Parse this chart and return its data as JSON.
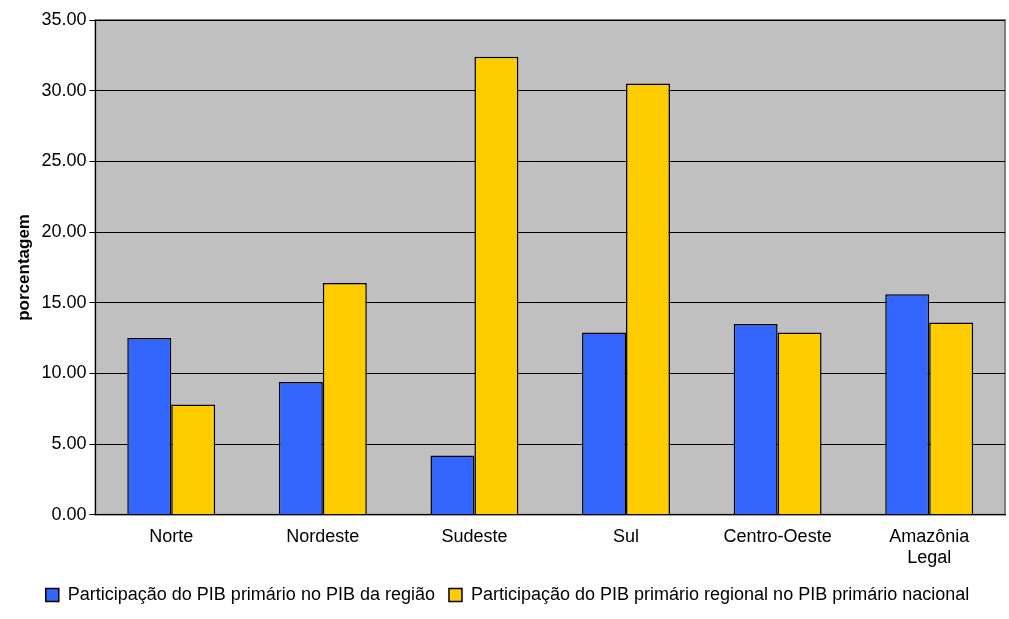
{
  "chart_data": {
    "type": "bar",
    "ylabel": "porcentagem",
    "categories": [
      "Norte",
      "Nordeste",
      "Sudeste",
      "Sul",
      "Centro-Oeste",
      "Amazônia Legal"
    ],
    "series": [
      {
        "name": "Participação do PIB primário no PIB da região",
        "color": "#3366ff",
        "values": [
          12.5,
          9.4,
          4.2,
          12.9,
          13.5,
          15.6
        ]
      },
      {
        "name": "Participação do PIB primário regional no PIB primário nacional",
        "color": "#ffcc00",
        "values": [
          7.8,
          16.4,
          32.4,
          30.5,
          12.9,
          13.6
        ]
      }
    ],
    "ylim": [
      0,
      35
    ],
    "yticks": [
      {
        "value": 0,
        "label": "0.00"
      },
      {
        "value": 5,
        "label": "5.00"
      },
      {
        "value": 10,
        "label": "10.00"
      },
      {
        "value": 15,
        "label": "15.00"
      },
      {
        "value": 20,
        "label": "20.00"
      },
      {
        "value": 25,
        "label": "25.00"
      },
      {
        "value": 30,
        "label": "30.00"
      },
      {
        "value": 35,
        "label": "35.00"
      }
    ],
    "grid": "y",
    "legend": "bottom"
  }
}
